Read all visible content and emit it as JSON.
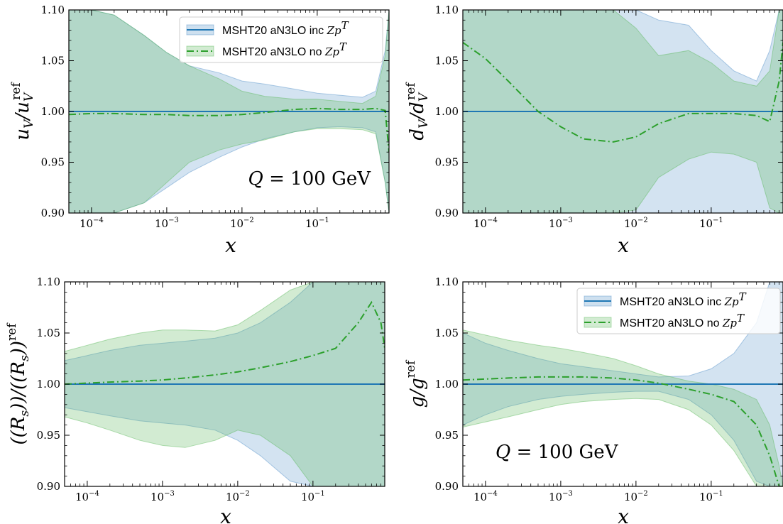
{
  "colors": {
    "inc_band": "#4f8fc7",
    "inc_line": "#1f77b4",
    "no_band": "#5cb85c",
    "no_line": "#2ca02c",
    "frame": "#000000"
  },
  "chart_data": [
    {
      "type": "area",
      "id": "uv",
      "ylabel": "u_V / u_V^ref",
      "xlabel": "x",
      "xscale": "log",
      "xlim": [
        5e-05,
        0.9
      ],
      "ylim": [
        0.9,
        1.1
      ],
      "yticks": [
        "0.90",
        "0.95",
        "1.00",
        "1.05",
        "1.10"
      ],
      "xticks": [
        {
          "base": "10",
          "exp": "−4"
        },
        {
          "base": "10",
          "exp": "−3"
        },
        {
          "base": "10",
          "exp": "−2"
        },
        {
          "base": "10",
          "exp": "−1"
        }
      ],
      "annotation": "Q = 100 GeV",
      "legend": {
        "placement": "top-right",
        "items": [
          {
            "label": "MSHT20 aN3LO inc ",
            "math": "Zp",
            "sup": "T"
          },
          {
            "label": "MSHT20 aN3LO no ",
            "math": "Zp",
            "sup": "T"
          }
        ]
      },
      "series": [
        {
          "name": "MSHT20 aN3LO inc ZpT",
          "x": [
            5e-05,
            0.0001,
            0.0002,
            0.0005,
            0.001,
            0.002,
            0.005,
            0.01,
            0.02,
            0.05,
            0.1,
            0.2,
            0.4,
            0.6,
            0.8,
            0.9
          ],
          "central": [
            1.0,
            1.0,
            1.0,
            1.0,
            1.0,
            1.0,
            1.0,
            1.0,
            1.0,
            1.0,
            1.0,
            1.0,
            1.0,
            1.0,
            1.0,
            1.0
          ],
          "upper": [
            1.1,
            1.1,
            1.095,
            1.075,
            1.058,
            1.045,
            1.038,
            1.03,
            1.027,
            1.022,
            1.018,
            1.016,
            1.014,
            1.02,
            1.06,
            1.1
          ],
          "lower": [
            0.9,
            0.9,
            0.9,
            0.91,
            0.925,
            0.94,
            0.955,
            0.965,
            0.973,
            0.98,
            0.984,
            0.985,
            0.984,
            0.98,
            0.93,
            0.9
          ]
        },
        {
          "name": "MSHT20 aN3LO no ZpT",
          "x": [
            5e-05,
            0.0001,
            0.0002,
            0.0005,
            0.001,
            0.002,
            0.005,
            0.01,
            0.02,
            0.05,
            0.1,
            0.2,
            0.4,
            0.6,
            0.8,
            0.9
          ],
          "central": [
            0.997,
            0.998,
            0.998,
            0.997,
            0.997,
            0.996,
            0.996,
            0.997,
            0.999,
            1.002,
            1.003,
            1.002,
            1.002,
            1.003,
            1.001,
            0.96
          ],
          "upper": [
            1.1,
            1.1,
            1.095,
            1.075,
            1.058,
            1.045,
            1.032,
            1.02,
            1.015,
            1.012,
            1.012,
            1.01,
            1.008,
            1.015,
            1.055,
            1.1
          ],
          "lower": [
            0.9,
            0.9,
            0.9,
            0.91,
            0.93,
            0.95,
            0.962,
            0.968,
            0.972,
            0.98,
            0.983,
            0.983,
            0.982,
            0.978,
            0.93,
            0.9
          ]
        }
      ]
    },
    {
      "type": "area",
      "id": "dv",
      "ylabel": "d_V / d_V^ref",
      "xlabel": "x",
      "xscale": "log",
      "xlim": [
        5e-05,
        0.9
      ],
      "ylim": [
        0.9,
        1.1
      ],
      "yticks": [
        "0.90",
        "0.95",
        "1.00",
        "1.05",
        "1.10"
      ],
      "xticks": [
        {
          "base": "10",
          "exp": "−4"
        },
        {
          "base": "10",
          "exp": "−3"
        },
        {
          "base": "10",
          "exp": "−2"
        },
        {
          "base": "10",
          "exp": "−1"
        }
      ],
      "series": [
        {
          "name": "MSHT20 aN3LO inc ZpT",
          "x": [
            5e-05,
            0.0001,
            0.0002,
            0.0005,
            0.001,
            0.002,
            0.005,
            0.01,
            0.02,
            0.05,
            0.1,
            0.2,
            0.4,
            0.6,
            0.8,
            0.9
          ],
          "central": [
            1.0,
            1.0,
            1.0,
            1.0,
            1.0,
            1.0,
            1.0,
            1.0,
            1.0,
            1.0,
            1.0,
            1.0,
            1.0,
            1.0,
            1.0,
            1.0
          ],
          "upper": [
            1.1,
            1.1,
            1.1,
            1.1,
            1.1,
            1.1,
            1.1,
            1.1,
            1.09,
            1.085,
            1.06,
            1.04,
            1.03,
            1.06,
            1.1,
            1.1
          ],
          "lower": [
            0.9,
            0.9,
            0.9,
            0.9,
            0.9,
            0.9,
            0.9,
            0.9,
            0.9,
            0.9,
            0.9,
            0.9,
            0.9,
            0.9,
            0.9,
            0.9
          ]
        },
        {
          "name": "MSHT20 aN3LO no ZpT",
          "x": [
            5e-05,
            0.0001,
            0.0002,
            0.0005,
            0.001,
            0.002,
            0.005,
            0.01,
            0.02,
            0.05,
            0.1,
            0.2,
            0.4,
            0.6,
            0.8,
            0.9
          ],
          "central": [
            1.068,
            1.052,
            1.03,
            1.0,
            0.985,
            0.973,
            0.97,
            0.975,
            0.988,
            0.998,
            0.998,
            0.998,
            0.996,
            0.99,
            1.03,
            1.068
          ],
          "upper": [
            1.1,
            1.1,
            1.1,
            1.1,
            1.1,
            1.1,
            1.1,
            1.082,
            1.055,
            1.06,
            1.048,
            1.03,
            1.025,
            1.04,
            1.1,
            1.1
          ],
          "lower": [
            0.9,
            0.9,
            0.9,
            0.9,
            0.9,
            0.9,
            0.9,
            0.903,
            0.935,
            0.953,
            0.96,
            0.958,
            0.95,
            0.905,
            0.9,
            0.9
          ]
        }
      ]
    },
    {
      "type": "area",
      "id": "rs",
      "ylabel": "((R_s))/((R_s))^ref",
      "xlabel": "x",
      "xscale": "log",
      "xlim": [
        5e-05,
        0.9
      ],
      "ylim": [
        0.9,
        1.1
      ],
      "yticks": [
        "0.90",
        "0.95",
        "1.00",
        "1.05",
        "1.10"
      ],
      "xticks": [
        {
          "base": "10",
          "exp": "−4"
        },
        {
          "base": "10",
          "exp": "−3"
        },
        {
          "base": "10",
          "exp": "−2"
        },
        {
          "base": "10",
          "exp": "−1"
        }
      ],
      "series": [
        {
          "name": "MSHT20 aN3LO inc ZpT",
          "x": [
            5e-05,
            0.0001,
            0.0002,
            0.0005,
            0.001,
            0.002,
            0.005,
            0.01,
            0.02,
            0.05,
            0.1,
            0.2,
            0.4,
            0.6,
            0.8,
            0.9
          ],
          "central": [
            1.0,
            1.0,
            1.0,
            1.0,
            1.0,
            1.0,
            1.0,
            1.0,
            1.0,
            1.0,
            1.0,
            1.0,
            1.0,
            1.0,
            1.0,
            1.0
          ],
          "upper": [
            1.023,
            1.028,
            1.033,
            1.038,
            1.04,
            1.042,
            1.045,
            1.05,
            1.06,
            1.08,
            1.1,
            1.1,
            1.1,
            1.1,
            1.1,
            1.1
          ],
          "lower": [
            0.977,
            0.973,
            0.969,
            0.964,
            0.962,
            0.96,
            0.955,
            0.945,
            0.93,
            0.905,
            0.9,
            0.9,
            0.9,
            0.9,
            0.9,
            0.9
          ]
        },
        {
          "name": "MSHT20 aN3LO no ZpT",
          "x": [
            5e-05,
            0.0001,
            0.0002,
            0.0005,
            0.001,
            0.002,
            0.005,
            0.01,
            0.02,
            0.05,
            0.1,
            0.2,
            0.4,
            0.6,
            0.8,
            0.9
          ],
          "central": [
            1.0,
            1.001,
            1.002,
            1.003,
            1.004,
            1.006,
            1.009,
            1.012,
            1.016,
            1.022,
            1.028,
            1.035,
            1.06,
            1.08,
            1.06,
            1.035
          ],
          "upper": [
            1.032,
            1.038,
            1.044,
            1.05,
            1.053,
            1.053,
            1.052,
            1.058,
            1.072,
            1.092,
            1.1,
            1.1,
            1.1,
            1.1,
            1.1,
            1.1
          ],
          "lower": [
            0.968,
            0.962,
            0.955,
            0.945,
            0.94,
            0.938,
            0.945,
            0.955,
            0.95,
            0.93,
            0.9,
            0.9,
            0.9,
            0.9,
            0.9,
            0.9
          ]
        }
      ]
    },
    {
      "type": "area",
      "id": "gluon",
      "ylabel": "g / g^ref",
      "xlabel": "x",
      "xscale": "log",
      "xlim": [
        5e-05,
        0.9
      ],
      "ylim": [
        0.9,
        1.1
      ],
      "yticks": [
        "0.90",
        "0.95",
        "1.00",
        "1.05",
        "1.10"
      ],
      "xticks": [
        {
          "base": "10",
          "exp": "−4"
        },
        {
          "base": "10",
          "exp": "−3"
        },
        {
          "base": "10",
          "exp": "−2"
        },
        {
          "base": "10",
          "exp": "−1"
        }
      ],
      "annotation": "Q = 100 GeV",
      "legend": {
        "placement": "top-right",
        "items": [
          {
            "label": "MSHT20 aN3LO inc ",
            "math": "Zp",
            "sup": "T"
          },
          {
            "label": "MSHT20 aN3LO no ",
            "math": "Zp",
            "sup": "T"
          }
        ]
      },
      "series": [
        {
          "name": "MSHT20 aN3LO inc ZpT",
          "x": [
            5e-05,
            0.0001,
            0.0002,
            0.0005,
            0.001,
            0.002,
            0.005,
            0.01,
            0.02,
            0.05,
            0.1,
            0.2,
            0.4,
            0.6,
            0.8,
            0.9
          ],
          "central": [
            1.0,
            1.0,
            1.0,
            1.0,
            1.0,
            1.0,
            1.0,
            1.0,
            1.0,
            1.0,
            1.0,
            1.0,
            1.0,
            1.0,
            1.0,
            1.0
          ],
          "upper": [
            1.05,
            1.04,
            1.033,
            1.025,
            1.02,
            1.017,
            1.013,
            1.01,
            1.007,
            1.008,
            1.015,
            1.03,
            1.06,
            1.1,
            1.1,
            1.1
          ],
          "lower": [
            0.96,
            0.97,
            0.978,
            0.985,
            0.988,
            0.99,
            0.992,
            0.993,
            0.993,
            0.985,
            0.97,
            0.945,
            0.905,
            0.9,
            0.9,
            0.9
          ]
        },
        {
          "name": "MSHT20 aN3LO no ZpT",
          "x": [
            5e-05,
            0.0001,
            0.0002,
            0.0005,
            0.001,
            0.002,
            0.005,
            0.01,
            0.02,
            0.05,
            0.1,
            0.2,
            0.4,
            0.6,
            0.8,
            0.9
          ],
          "central": [
            1.004,
            1.005,
            1.006,
            1.007,
            1.007,
            1.007,
            1.006,
            1.004,
            1.001,
            0.995,
            0.99,
            0.983,
            0.96,
            0.93,
            0.9,
            0.9
          ],
          "upper": [
            1.053,
            1.048,
            1.043,
            1.038,
            1.035,
            1.031,
            1.025,
            1.018,
            1.01,
            1.003,
            1.0,
            0.995,
            0.985,
            0.96,
            0.92,
            0.9
          ],
          "lower": [
            0.958,
            0.963,
            0.968,
            0.975,
            0.98,
            0.983,
            0.985,
            0.986,
            0.985,
            0.975,
            0.96,
            0.935,
            0.9,
            0.9,
            0.9,
            0.9
          ]
        }
      ]
    }
  ]
}
